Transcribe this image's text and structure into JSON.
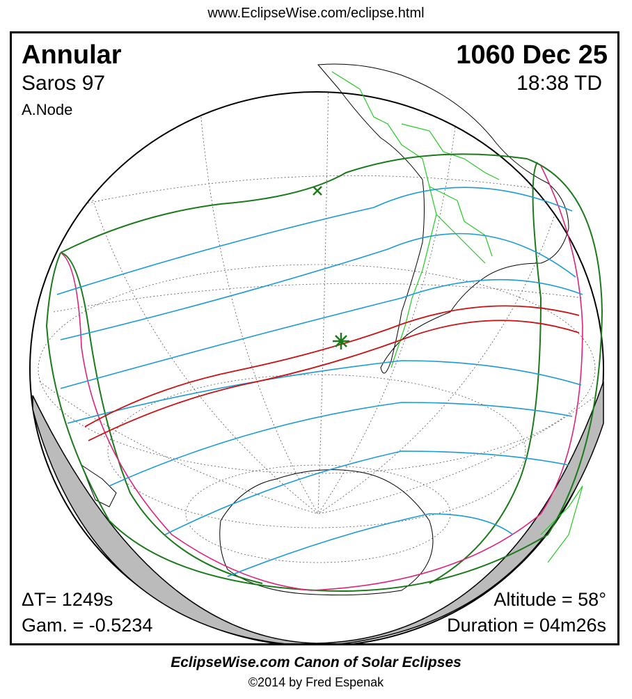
{
  "header": {
    "url": "www.EclipseWise.com/eclipse.html"
  },
  "panel": {
    "eclipse_type": "Annular",
    "saros": "Saros  97",
    "node": "A.Node",
    "date": "1060 Dec 25",
    "time": "18:38 TD",
    "delta_t": "ΔT=   1249s",
    "gamma": "Gam. = -0.5234",
    "altitude": "Altitude = 58°",
    "duration": "Duration = 04m26s"
  },
  "colors": {
    "penumbral_limit": "#1a7a1a",
    "annular_path": "#cc1111",
    "time_lines": "#1a9ad6",
    "rise_set_limit": "#e0227a",
    "borders": "#22cc22",
    "night_side": "#bbbbbb"
  },
  "markers": [
    "greatest-eclipse-star-icon",
    "subsolar-x-icon"
  ],
  "footer": {
    "title": "EclipseWise.com Canon of Solar Eclipses",
    "copyright": "©2014 by Fred Espenak"
  }
}
